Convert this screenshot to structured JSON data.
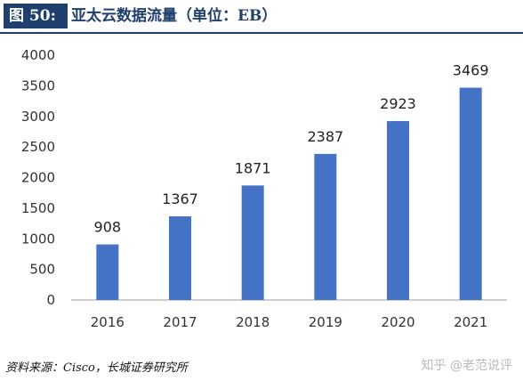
{
  "header": {
    "figure_label": "图 50:",
    "title": "亚太云数据流量（单位：EB）"
  },
  "source": "资料来源：Cisco，长城证券研究所",
  "watermark": "知乎 @老范说评",
  "colors": {
    "bar": "#4472c4",
    "header": "#1f3f6e",
    "axis": "#bfbfbf"
  },
  "chart_data": {
    "type": "bar",
    "categories": [
      "2016",
      "2017",
      "2018",
      "2019",
      "2020",
      "2021"
    ],
    "values": [
      908,
      1367,
      1871,
      2387,
      2923,
      3469
    ],
    "ylim": [
      0,
      4000
    ],
    "yticks": [
      "0",
      "500",
      "1000",
      "1500",
      "2000",
      "2500",
      "3000",
      "3500",
      "4000"
    ],
    "grid": false
  }
}
